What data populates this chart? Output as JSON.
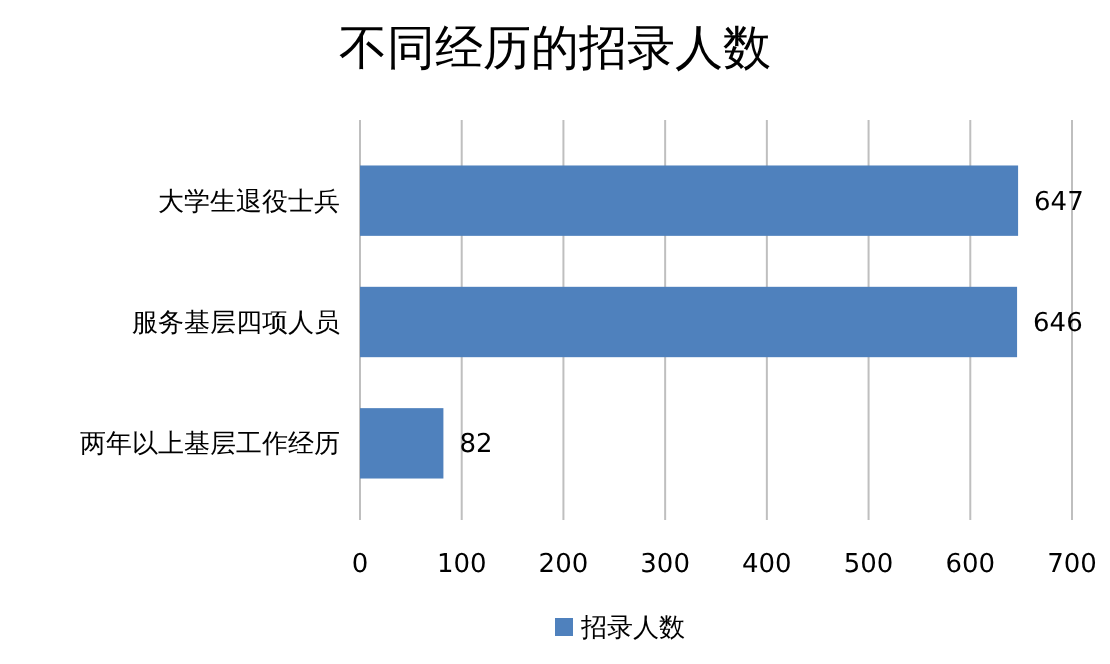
{
  "chart_data": {
    "type": "bar",
    "orientation": "horizontal",
    "title": "不同经历的招录人数",
    "categories": [
      "大学生退役士兵",
      "服务基层四项人员",
      "两年以上基层工作经历"
    ],
    "series": [
      {
        "name": "招录人数",
        "color": "#4f81bd",
        "values": [
          647,
          646,
          82
        ]
      }
    ],
    "xlim": [
      0,
      700
    ],
    "xticks": [
      0,
      100,
      200,
      300,
      400,
      500,
      600,
      700
    ],
    "grid": "x",
    "data_labels": true,
    "legend": "bottom"
  }
}
